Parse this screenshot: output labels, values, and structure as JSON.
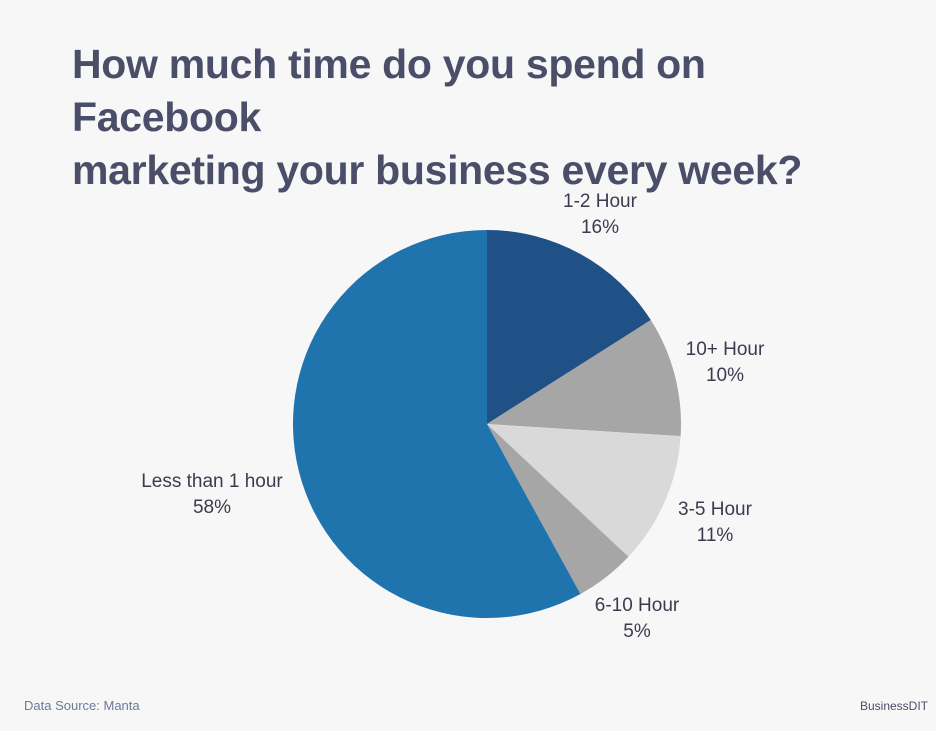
{
  "title_lines": [
    "How much time do you spend on Facebook",
    "marketing your business every week?"
  ],
  "chart_data": {
    "type": "pie",
    "title": "How much time do you spend on Facebook marketing your business every week?",
    "slices": [
      {
        "label": "1-2 Hour",
        "value": 16,
        "value_label": "16%",
        "color": "#1f5187"
      },
      {
        "label": "10+ Hour",
        "value": 10,
        "value_label": "10%",
        "color": "#a6a6a6"
      },
      {
        "label": "3-5 Hour",
        "value": 11,
        "value_label": "11%",
        "color": "#d9d9d9"
      },
      {
        "label": "6-10 Hour",
        "value": 5,
        "value_label": "5%",
        "color": "#a6a6a6"
      },
      {
        "label": "Less than 1 hour",
        "value": 58,
        "value_label": "58%",
        "color": "#1f74ad"
      }
    ]
  },
  "footer": {
    "source": "Data Source: Manta",
    "brand": "BusinessDIT"
  }
}
